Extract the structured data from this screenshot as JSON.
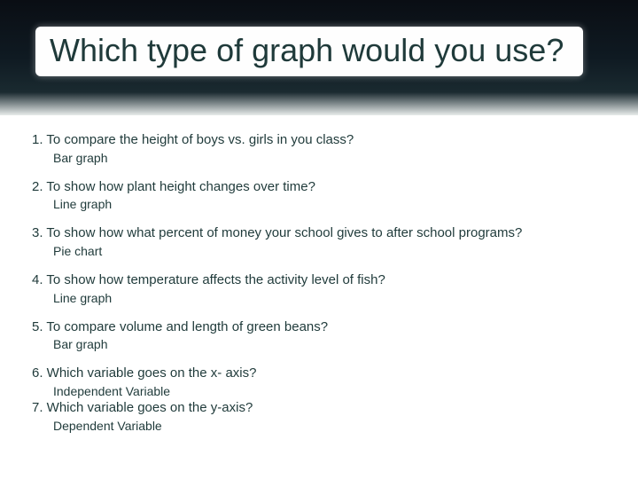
{
  "colors": {
    "text": "#1f3a3a",
    "banner_top": "#0a0e14",
    "banner_mid": "#1a2a30",
    "title_bg": "#fefefe",
    "page_bg": "#ffffff"
  },
  "typography": {
    "title_fontsize_pt": 28,
    "body_fontsize_pt": 11,
    "font_family": "Candara / Segoe UI"
  },
  "title": "Which type of graph would you use?",
  "items": [
    {
      "q": "1. To compare the height of boys vs. girls in you class?",
      "a": "Bar graph"
    },
    {
      "q": "2. To show how plant height changes over time?",
      "a": "Line graph"
    },
    {
      "q": "3. To show how what percent of money your school gives to after school programs?",
      "a": "Pie chart"
    },
    {
      "q": "4. To show how temperature affects the activity level of fish?",
      "a": "Line graph"
    },
    {
      "q": "5. To compare volume and length of green beans?",
      "a": "Bar graph"
    },
    {
      "q": "6. Which variable goes on the x- axis?",
      "a": " Independent Variable"
    },
    {
      "q": "7.  Which variable goes on the y-axis?",
      "a": "Dependent Variable"
    }
  ]
}
